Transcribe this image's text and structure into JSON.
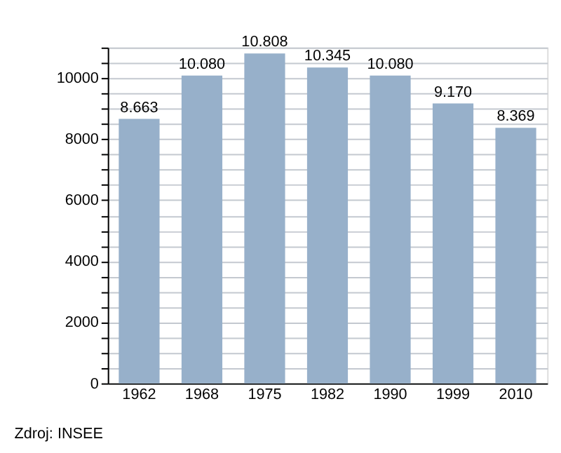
{
  "chart_data": {
    "type": "bar",
    "categories": [
      "1962",
      "1968",
      "1975",
      "1982",
      "1990",
      "1999",
      "2010"
    ],
    "values": [
      8663,
      10080,
      10808,
      10345,
      10080,
      9170,
      8369
    ],
    "value_labels": [
      "8.663",
      "10.080",
      "10.808",
      "10.345",
      "10.080",
      "9.170",
      "8.369"
    ],
    "color": "#97b0ca",
    "ylim": [
      0,
      11000
    ],
    "yticks": [
      0,
      {
        "value": 500,
        "label": null
      },
      {
        "value": 1000,
        "label": null
      },
      {
        "value": 1500,
        "label": null
      },
      2000,
      {
        "value": 2500,
        "label": null
      },
      {
        "value": 3000,
        "label": null
      },
      {
        "value": 3500,
        "label": null
      },
      4000,
      {
        "value": 4500,
        "label": null
      },
      {
        "value": 5000,
        "label": null
      },
      {
        "value": 5500,
        "label": null
      },
      6000,
      {
        "value": 6500,
        "label": null
      },
      {
        "value": 7000,
        "label": null
      },
      {
        "value": 7500,
        "label": null
      },
      8000,
      {
        "value": 8500,
        "label": null
      },
      {
        "value": 9000,
        "label": null
      },
      {
        "value": 9500,
        "label": null
      },
      10000,
      {
        "value": 10500,
        "label": null
      },
      {
        "value": 11000,
        "label": null
      }
    ],
    "grid": "y",
    "annotations": [
      "Zdroj: INSEE"
    ]
  }
}
